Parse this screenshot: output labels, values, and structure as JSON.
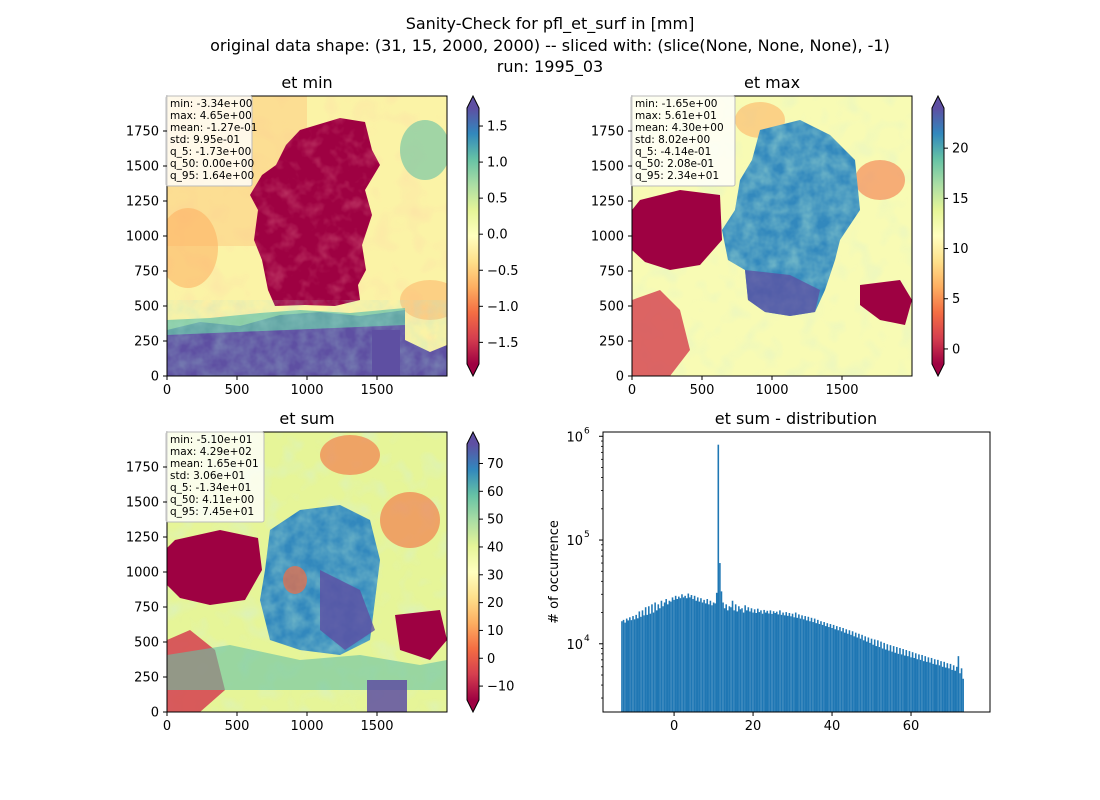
{
  "title": {
    "line1": "Sanity-Check for pfl_et_surf in [mm]",
    "line2": "original data shape: (31, 15, 2000, 2000) -- sliced with: (slice(None, None, None), -1)",
    "line3": "run: 1995_03"
  },
  "colors": {
    "hist_bar": "#1f77b4",
    "cmap": [
      "#9e0142",
      "#d53e4f",
      "#f46d43",
      "#fdae61",
      "#fee08b",
      "#ffffbf",
      "#e6f598",
      "#abdda4",
      "#66c2a5",
      "#3288bd",
      "#5e4fa2"
    ]
  },
  "chart_data": [
    {
      "type": "heatmap",
      "title": "et min",
      "colormap": "Spectral",
      "x_ticks": [
        "0",
        "500",
        "1000",
        "1500"
      ],
      "y_ticks": [
        "0",
        "250",
        "500",
        "750",
        "1000",
        "1250",
        "1500",
        "1750"
      ],
      "xlim": [
        0,
        2000
      ],
      "ylim": [
        0,
        2000
      ],
      "colorbar_range": [
        -1.8,
        1.75
      ],
      "colorbar_ticks": [
        "1.5",
        "1.0",
        "0.5",
        "0.0",
        "−0.5",
        "−1.0",
        "−1.5"
      ],
      "colorbar_tick_values": [
        1.5,
        1.0,
        0.5,
        0.0,
        -0.5,
        -1.0,
        -1.5
      ],
      "stats": [
        "min: -3.34e+00",
        "max: 4.65e+00",
        "mean: -1.27e-01",
        "std: 9.95e-01",
        "q_5: -1.73e+00",
        "q_50: 0.00e+00",
        "q_95: 1.64e+00"
      ]
    },
    {
      "type": "heatmap",
      "title": "et max",
      "colormap": "Spectral",
      "x_ticks": [
        "0",
        "500",
        "1000",
        "1500"
      ],
      "y_ticks": [
        "0",
        "250",
        "500",
        "750",
        "1000",
        "1250",
        "1500",
        "1750"
      ],
      "xlim": [
        0,
        2000
      ],
      "ylim": [
        0,
        2000
      ],
      "colorbar_range": [
        -1.5,
        24
      ],
      "colorbar_ticks": [
        "20",
        "15",
        "10",
        "5",
        "0"
      ],
      "colorbar_tick_values": [
        20,
        15,
        10,
        5,
        0
      ],
      "stats": [
        "min: -1.65e+00",
        "max: 5.61e+01",
        "mean: 4.30e+00",
        "std: 8.02e+00",
        "q_5: -4.14e-01",
        "q_50: 2.08e-01",
        "q_95: 2.34e+01"
      ]
    },
    {
      "type": "heatmap",
      "title": "et sum",
      "colormap": "Spectral",
      "x_ticks": [
        "0",
        "500",
        "1000",
        "1500"
      ],
      "y_ticks": [
        "0",
        "250",
        "500",
        "750",
        "1000",
        "1250",
        "1500",
        "1750"
      ],
      "xlim": [
        0,
        2000
      ],
      "ylim": [
        0,
        2000
      ],
      "colorbar_range": [
        -15,
        77
      ],
      "colorbar_ticks": [
        "70",
        "60",
        "50",
        "40",
        "30",
        "20",
        "10",
        "0",
        "−10"
      ],
      "colorbar_tick_values": [
        70,
        60,
        50,
        40,
        30,
        20,
        10,
        0,
        -10
      ],
      "stats": [
        "min: -5.10e+01",
        "max: 4.29e+02",
        "mean: 1.65e+01",
        "std: 3.06e+01",
        "q_5: -1.34e+01",
        "q_50: 4.11e+00",
        "q_95: 7.45e+01"
      ]
    },
    {
      "type": "bar",
      "title": "et sum - distribution",
      "ylabel": "# of occurrence",
      "y_scale": "log",
      "xlim": [
        -18,
        80
      ],
      "ylim": [
        2200,
        1100000
      ],
      "x_ticks": [
        0,
        20,
        40,
        60
      ],
      "x_tick_labels": [
        "0",
        "20",
        "40",
        "60"
      ],
      "y_ticks": [
        10000,
        100000,
        1000000
      ],
      "y_tick_labels": [
        "10",
        "10",
        "10"
      ],
      "y_tick_exponents": [
        "4",
        "5",
        "6"
      ],
      "bin_width": 0.4,
      "bins": {
        "x_start": -13.4,
        "values": [
          16500,
          17000,
          16000,
          17500,
          16800,
          18000,
          16900,
          18500,
          17200,
          19000,
          17600,
          20500,
          18200,
          21000,
          18800,
          22500,
          19000,
          23000,
          19500,
          24000,
          20000,
          25000,
          21000,
          24000,
          22000,
          26000,
          23000,
          25000,
          27000,
          24000,
          26000,
          25500,
          28000,
          26500,
          29000,
          27000,
          28500,
          27500,
          30000,
          28000,
          29000,
          27500,
          30500,
          28000,
          29500,
          27000,
          29000,
          26000,
          28000,
          25500,
          27500,
          25000,
          26500,
          24500,
          27000,
          24000,
          26000,
          23500,
          25000,
          24500,
          31000,
          830000,
          60000,
          32000,
          25000,
          22000,
          24000,
          21000,
          23000,
          22500,
          26000,
          21000,
          24000,
          20500,
          23000,
          21500,
          22000,
          20000,
          23500,
          21000,
          22500,
          20500,
          22000,
          20000,
          21500,
          19800,
          21800,
          20200,
          21000,
          19500,
          21200,
          20000,
          20800,
          19600,
          21000,
          19400,
          20600,
          19800,
          20400,
          19200,
          21000,
          19000,
          20000,
          18800,
          20200,
          18600,
          19800,
          18400,
          19500,
          18000,
          20000,
          17800,
          19200,
          17500,
          18800,
          17200,
          18500,
          16800,
          18200,
          16500,
          17800,
          16200,
          17500,
          15800,
          17000,
          15500,
          16500,
          15200,
          16200,
          14800,
          15800,
          14500,
          15500,
          14200,
          15200,
          13800,
          14800,
          13500,
          14500,
          13200,
          14200,
          12800,
          13800,
          12500,
          13500,
          12200,
          13200,
          11800,
          12800,
          11500,
          12500,
          11200,
          12200,
          10800,
          11800,
          10500,
          11500,
          10200,
          11200,
          9800,
          11000,
          9500,
          10800,
          9300,
          10500,
          9000,
          10200,
          8800,
          9900,
          8600,
          9700,
          8400,
          9500,
          8200,
          9300,
          8000,
          9100,
          7900,
          8900,
          7700,
          8700,
          7600,
          8500,
          7400,
          8300,
          7300,
          8100,
          7100,
          7900,
          7000,
          7800,
          6800,
          7600,
          6700,
          7400,
          6600,
          7300,
          6400,
          7100,
          6300,
          7000,
          6200,
          6800,
          6000,
          6700,
          5900,
          6500,
          5800,
          6400,
          5600,
          6200,
          5500,
          6000,
          7600,
          5200,
          5800,
          4600
        ]
      }
    }
  ]
}
